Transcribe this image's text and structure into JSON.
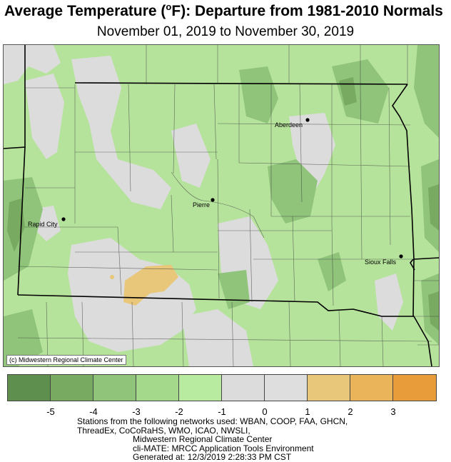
{
  "title_prefix": "Average Temperature (",
  "title_unit": "F): Departure from 1981-2010 Normals",
  "title_degree": "o",
  "subtitle": "November 01, 2019 to November 30, 2019",
  "credit": "(c) Midwestern Regional Climate Center",
  "cities": {
    "aberdeen": "Aberdeen",
    "pierre": "Pierre",
    "rapid_city": "Rapid City",
    "sioux_falls": "Sioux Falls"
  },
  "legend": {
    "colors": [
      "#5e8f4e",
      "#78ab61",
      "#8fc47a",
      "#a4d98c",
      "#b8eaa0",
      "#dcdcdc",
      "#dedede",
      "#e8c67a",
      "#e9b45a",
      "#e99d3a"
    ],
    "ticks": [
      "-5",
      "-4",
      "-3",
      "-2",
      "-1",
      "0",
      "1",
      "2",
      "3"
    ]
  },
  "footer": {
    "line1": "Stations from the following networks used: WBAN, COOP, FAA, GHCN,",
    "line2": "ThreadEx, CoCoRaHS, WMO, ICAO, NWSLI,",
    "line3": "Midwestern Regional Climate Center",
    "line4": "cli-MATE: MRCC Application Tools Environment",
    "line5": "Generated at: 12/3/2019 2:28:33 PM CST"
  }
}
